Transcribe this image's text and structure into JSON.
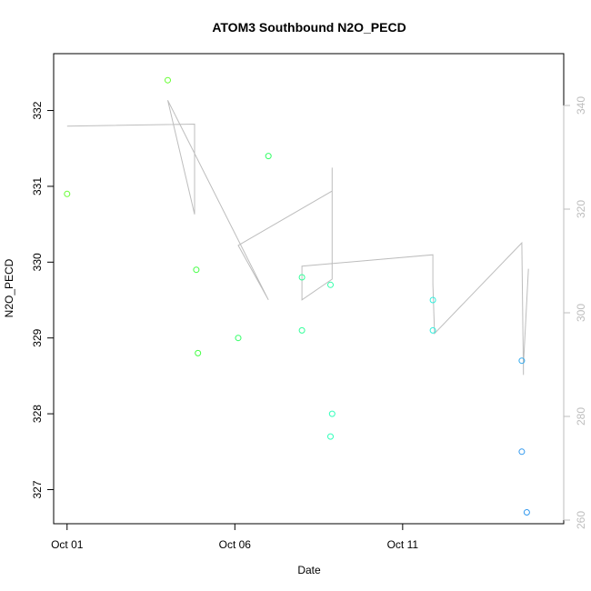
{
  "chart_data": {
    "type": "scatter",
    "title": "ATOM3 Southbound N2O_PECD",
    "xlabel": "Date",
    "ylabel": "N2O_PECD",
    "y2label": "",
    "x_ticks": [
      {
        "value": 0,
        "label": "Oct 01"
      },
      {
        "value": 5,
        "label": "Oct 06"
      },
      {
        "value": 10,
        "label": "Oct 11"
      }
    ],
    "y_ticks": [
      327,
      328,
      329,
      330,
      331,
      332
    ],
    "y2_ticks": [
      260,
      280,
      300,
      320,
      340
    ],
    "xlim": [
      -0.4,
      14.8
    ],
    "ylim": [
      326.55,
      332.75
    ],
    "y2lim": [
      259.3,
      350.0
    ],
    "points": [
      {
        "x": 0.0,
        "y": 330.9,
        "color": "#66ff33"
      },
      {
        "x": 3.0,
        "y": 332.4,
        "color": "#66ff33"
      },
      {
        "x": 3.85,
        "y": 329.9,
        "color": "#44ff44"
      },
      {
        "x": 3.9,
        "y": 328.8,
        "color": "#44ff44"
      },
      {
        "x": 6.0,
        "y": 331.4,
        "color": "#33ff66"
      },
      {
        "x": 5.1,
        "y": 329.0,
        "color": "#33ff66"
      },
      {
        "x": 7.0,
        "y": 329.8,
        "color": "#33ff99"
      },
      {
        "x": 7.0,
        "y": 329.1,
        "color": "#33ff99"
      },
      {
        "x": 7.85,
        "y": 329.7,
        "color": "#33ffaa"
      },
      {
        "x": 7.9,
        "y": 328.0,
        "color": "#33ffbb"
      },
      {
        "x": 7.85,
        "y": 327.7,
        "color": "#33ffbb"
      },
      {
        "x": 10.9,
        "y": 329.5,
        "color": "#33eedd"
      },
      {
        "x": 10.9,
        "y": 329.1,
        "color": "#33eedd"
      },
      {
        "x": 13.55,
        "y": 328.7,
        "color": "#33aaee"
      },
      {
        "x": 13.55,
        "y": 327.5,
        "color": "#3399ee"
      },
      {
        "x": 13.7,
        "y": 326.7,
        "color": "#3399ee"
      }
    ],
    "line_series": {
      "axis": "right",
      "points": [
        {
          "x": 0.0,
          "y": 336.0
        },
        {
          "x": 3.8,
          "y": 336.4
        },
        {
          "x": 3.8,
          "y": 319.0
        },
        {
          "x": 3.0,
          "y": 341.0
        },
        {
          "x": 6.0,
          "y": 302.5
        },
        {
          "x": 5.1,
          "y": 313.0
        },
        {
          "x": 7.9,
          "y": 323.5
        },
        {
          "x": 7.9,
          "y": 328.0
        },
        {
          "x": 7.9,
          "y": 306.5
        },
        {
          "x": 7.0,
          "y": 302.5
        },
        {
          "x": 7.0,
          "y": 309.0
        },
        {
          "x": 10.9,
          "y": 311.2
        },
        {
          "x": 10.9,
          "y": 305.5
        },
        {
          "x": 10.95,
          "y": 296.0
        },
        {
          "x": 13.55,
          "y": 313.5
        },
        {
          "x": 13.6,
          "y": 288.0
        },
        {
          "x": 13.6,
          "y": 290.0
        },
        {
          "x": 13.75,
          "y": 308.5
        }
      ]
    }
  }
}
